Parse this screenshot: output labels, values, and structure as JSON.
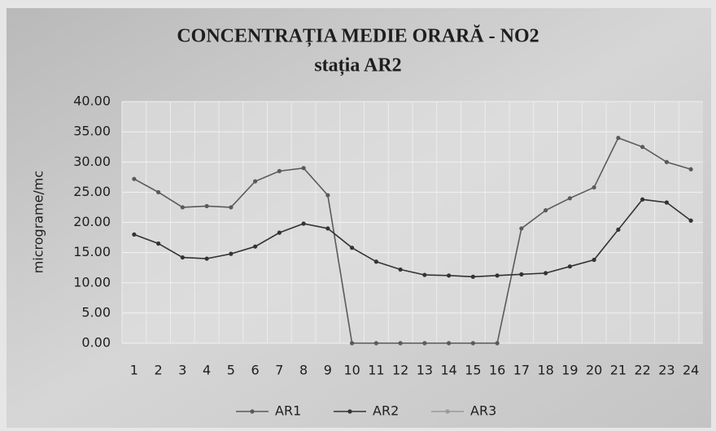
{
  "chart_data": {
    "type": "line",
    "title": "CONCENTRAȚIA MEDIE ORARĂ  - NO2",
    "subtitle": "stația AR2",
    "y_label": "micrograme/mc",
    "categories": [
      "1",
      "2",
      "3",
      "4",
      "5",
      "6",
      "7",
      "8",
      "9",
      "10",
      "11",
      "12",
      "13",
      "14",
      "15",
      "16",
      "17",
      "18",
      "19",
      "20",
      "21",
      "22",
      "23",
      "24"
    ],
    "series": [
      {
        "name": "AR1",
        "color": "#5a5a5a",
        "values": [
          27.2,
          25.0,
          22.5,
          22.7,
          22.5,
          26.8,
          28.5,
          29.0,
          24.5,
          0,
          0,
          0,
          0,
          0,
          0,
          0,
          19.0,
          22.0,
          24.0,
          25.8,
          34.0,
          32.5,
          30.0,
          28.8
        ]
      },
      {
        "name": "AR2",
        "color": "#333333",
        "values": [
          18.0,
          16.5,
          14.2,
          14.0,
          14.8,
          16.0,
          18.3,
          19.8,
          19.0,
          15.8,
          13.5,
          12.2,
          11.3,
          11.2,
          11.0,
          11.2,
          11.4,
          11.6,
          12.7,
          13.8,
          18.8,
          23.8,
          23.3,
          20.3
        ]
      },
      {
        "name": "AR3",
        "color": "#9a9a9a",
        "values": [
          null,
          null,
          null,
          null,
          null,
          null,
          null,
          null,
          null,
          null,
          null,
          null,
          null,
          null,
          null,
          null,
          null,
          null,
          null,
          null,
          null,
          null,
          null,
          null
        ]
      }
    ],
    "ylim": [
      0,
      40
    ],
    "yticks": [
      {
        "value": 0,
        "label": "0.00"
      },
      {
        "value": 5,
        "label": "5.00"
      },
      {
        "value": 10,
        "label": "10.00"
      },
      {
        "value": 15,
        "label": "15.00"
      },
      {
        "value": 20,
        "label": "20.00"
      },
      {
        "value": 25,
        "label": "25.00"
      },
      {
        "value": 30,
        "label": "30.00"
      },
      {
        "value": 35,
        "label": "35.00"
      },
      {
        "value": 40,
        "label": "40.00"
      }
    ],
    "grid": true,
    "legend": "bottom"
  }
}
